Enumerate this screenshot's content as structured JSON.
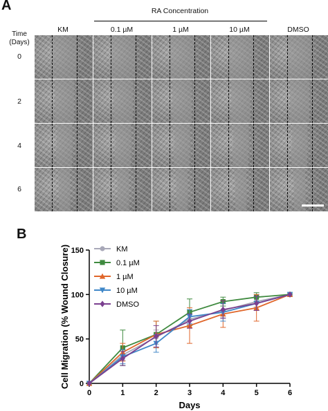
{
  "panel_a": {
    "letter": "A",
    "group_title": "RA Concentration",
    "time_label_line1": "Time",
    "time_label_line2": "(Days)",
    "columns": [
      "KM",
      "0.1 µM",
      "1 µM",
      "10 µM",
      "DMSO"
    ],
    "rows": [
      "0",
      "2",
      "4",
      "6"
    ]
  },
  "panel_b": {
    "letter": "B"
  },
  "chart_data": {
    "type": "line",
    "title": "",
    "xlabel": "Days",
    "ylabel": "Cell Migration (% Wound Closure)",
    "xlim": [
      0,
      6
    ],
    "ylim": [
      0,
      150
    ],
    "x": [
      0,
      1,
      2,
      3,
      4,
      5,
      6
    ],
    "xticks": [
      "0",
      "1",
      "2",
      "3",
      "4",
      "5",
      "6"
    ],
    "yticks": [
      "0",
      "50",
      "100",
      "150"
    ],
    "legend_position": "top-left",
    "grid": false,
    "series": [
      {
        "name": "KM",
        "color": "#a8a8b8",
        "marker": "circle",
        "values": [
          0,
          32,
          52,
          72,
          82,
          92,
          100
        ],
        "errors": [
          0,
          6,
          8,
          6,
          8,
          6,
          0
        ]
      },
      {
        "name": "0.1 µM",
        "color": "#3f8a3f",
        "marker": "square",
        "values": [
          0,
          40,
          55,
          80,
          92,
          97,
          100
        ],
        "errors": [
          0,
          20,
          15,
          15,
          5,
          5,
          0
        ]
      },
      {
        "name": "1 µM",
        "color": "#e0662a",
        "marker": "triangle-up",
        "values": [
          0,
          35,
          55,
          65,
          78,
          85,
          100
        ],
        "errors": [
          0,
          10,
          15,
          20,
          15,
          15,
          0
        ]
      },
      {
        "name": "10 µM",
        "color": "#3f87c8",
        "marker": "triangle-down",
        "values": [
          0,
          30,
          45,
          75,
          80,
          90,
          100
        ],
        "errors": [
          0,
          8,
          10,
          8,
          10,
          8,
          0
        ]
      },
      {
        "name": "DMSO",
        "color": "#7a3f8f",
        "marker": "diamond",
        "values": [
          0,
          28,
          53,
          70,
          83,
          90,
          100
        ],
        "errors": [
          0,
          8,
          12,
          8,
          10,
          8,
          0
        ]
      }
    ]
  }
}
